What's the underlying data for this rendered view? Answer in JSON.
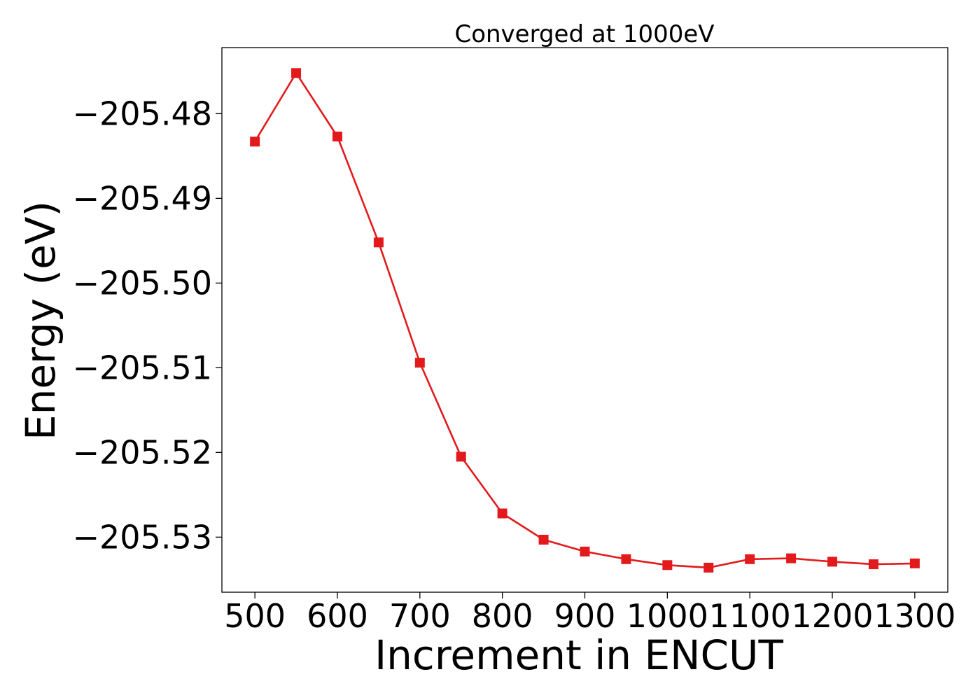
{
  "chart_data": {
    "type": "line",
    "title": "Converged at 1000eV",
    "xlabel": "Increment in ENCUT",
    "ylabel": "Energy (eV)",
    "x": [
      500,
      550,
      600,
      650,
      700,
      750,
      800,
      850,
      900,
      950,
      1000,
      1050,
      1100,
      1150,
      1200,
      1250,
      1300
    ],
    "series": [
      {
        "values": [
          -205.4833,
          -205.4752,
          -205.4827,
          -205.4952,
          -205.5094,
          -205.5205,
          -205.5272,
          -205.5303,
          -205.5317,
          -205.5326,
          -205.5333,
          -205.5336,
          -205.5326,
          -205.5325,
          -205.5329,
          -205.5332,
          -205.5331
        ],
        "color": "#e31a1c",
        "marker": "square"
      }
    ],
    "xlim": [
      460,
      1340
    ],
    "ylim": [
      -205.5365,
      -205.4722
    ],
    "xticks": [
      500,
      600,
      700,
      800,
      900,
      1000,
      1100,
      1200,
      1300
    ],
    "xtick_labels": [
      "500",
      "600",
      "700",
      "800",
      "900",
      "1000",
      "1100",
      "1200",
      "1300"
    ],
    "yticks": [
      -205.48,
      -205.49,
      -205.5,
      -205.51,
      -205.52,
      -205.53
    ],
    "ytick_labels": [
      "−205.48",
      "−205.49",
      "−205.50",
      "−205.51",
      "−205.52",
      "−205.53"
    ],
    "grid": false,
    "legend": "none"
  }
}
